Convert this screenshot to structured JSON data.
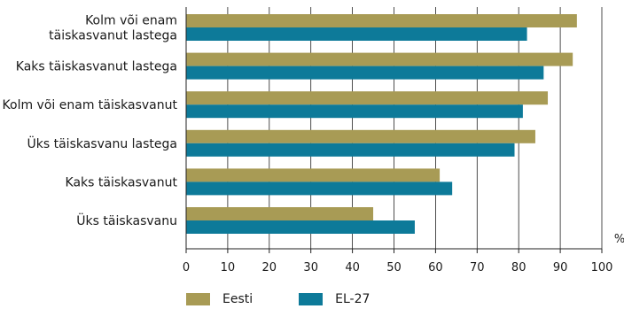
{
  "chart_data": {
    "type": "bar",
    "orientation": "horizontal",
    "categories": [
      [
        "Kolm või enam",
        "täiskasvanut lastega"
      ],
      [
        "Kaks täiskasvanut lastega"
      ],
      [
        "Kolm või enam täiskasvanut"
      ],
      [
        "Üks täiskasvanu lastega"
      ],
      [
        "Kaks täiskasvanut"
      ],
      [
        "Üks täiskasvanu"
      ]
    ],
    "series": [
      {
        "name": "Eesti",
        "color": "#A89B55",
        "values": [
          94,
          93,
          87,
          84,
          61,
          45
        ]
      },
      {
        "name": "EL-27",
        "color": "#0D7A99",
        "values": [
          82,
          86,
          81,
          79,
          64,
          55
        ]
      }
    ],
    "xlim": [
      0,
      100
    ],
    "xticks": [
      "0",
      "10",
      "20",
      "30",
      "40",
      "50",
      "60",
      "70",
      "80",
      "90",
      "100"
    ],
    "unit": "%",
    "grid": "vertical",
    "legend_position": "bottom-left"
  }
}
